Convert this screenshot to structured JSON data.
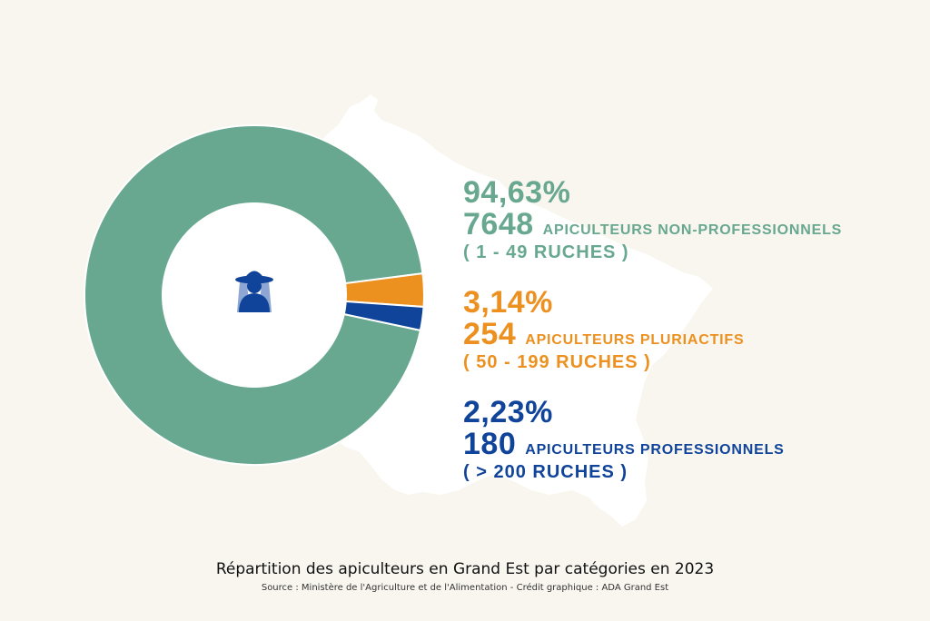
{
  "chart_data": {
    "type": "pie",
    "variant": "donut",
    "categories": [
      {
        "percent_label": "94,63%",
        "percent": 94.63,
        "count": "7648",
        "label": "APICULTEURS NON-PROFESSIONNELS",
        "range": "( 1 - 49 RUCHES )",
        "color": "#68a790"
      },
      {
        "percent_label": "3,14%",
        "percent": 3.14,
        "count": "254",
        "label": "APICULTEURS PLURIACTIFS",
        "range": "( 50 - 199 RUCHES )",
        "color": "#ec901f"
      },
      {
        "percent_label": "2,23%",
        "percent": 2.23,
        "count": "180",
        "label": "APICULTEURS PROFESSIONNELS",
        "range": "( > 200 RUCHES )",
        "color": "#10449a"
      }
    ],
    "center_icon": "beekeeper-icon",
    "background_shape": "grand-est-region-map"
  },
  "caption": "Répartition des apiculteurs en Grand Est par catégories en 2023",
  "source": "Source : Ministère de l'Agriculture et de l'Alimentation - Crédit graphique : ADA Grand Est"
}
